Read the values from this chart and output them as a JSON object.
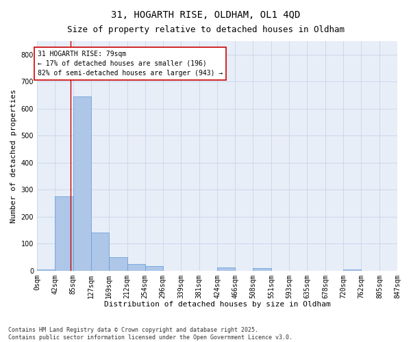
{
  "title_line1": "31, HOGARTH RISE, OLDHAM, OL1 4QD",
  "title_line2": "Size of property relative to detached houses in Oldham",
  "xlabel": "Distribution of detached houses by size in Oldham",
  "ylabel": "Number of detached properties",
  "bar_edges": [
    0,
    42,
    85,
    127,
    169,
    212,
    254,
    296,
    339,
    381,
    424,
    466,
    508,
    551,
    593,
    635,
    678,
    720,
    762,
    805,
    847
  ],
  "bar_heights": [
    5,
    275,
    645,
    140,
    50,
    25,
    17,
    0,
    0,
    0,
    13,
    0,
    10,
    0,
    0,
    0,
    0,
    5,
    0,
    0
  ],
  "bar_color": "#aec6e8",
  "bar_edge_color": "#5b9bd5",
  "grid_color": "#c8d4e8",
  "background_color": "#e8eef8",
  "vline_x": 79,
  "vline_color": "#cc0000",
  "annotation_line1": "31 HOGARTH RISE: 79sqm",
  "annotation_line2": "← 17% of detached houses are smaller (196)",
  "annotation_line3": "82% of semi-detached houses are larger (943) →",
  "annotation_box_color": "#cc0000",
  "ylim": [
    0,
    850
  ],
  "yticks": [
    0,
    100,
    200,
    300,
    400,
    500,
    600,
    700,
    800
  ],
  "footnote": "Contains HM Land Registry data © Crown copyright and database right 2025.\nContains public sector information licensed under the Open Government Licence v3.0.",
  "title_fontsize": 10,
  "subtitle_fontsize": 9,
  "axis_label_fontsize": 8,
  "tick_fontsize": 7,
  "annotation_fontsize": 7,
  "footnote_fontsize": 6
}
